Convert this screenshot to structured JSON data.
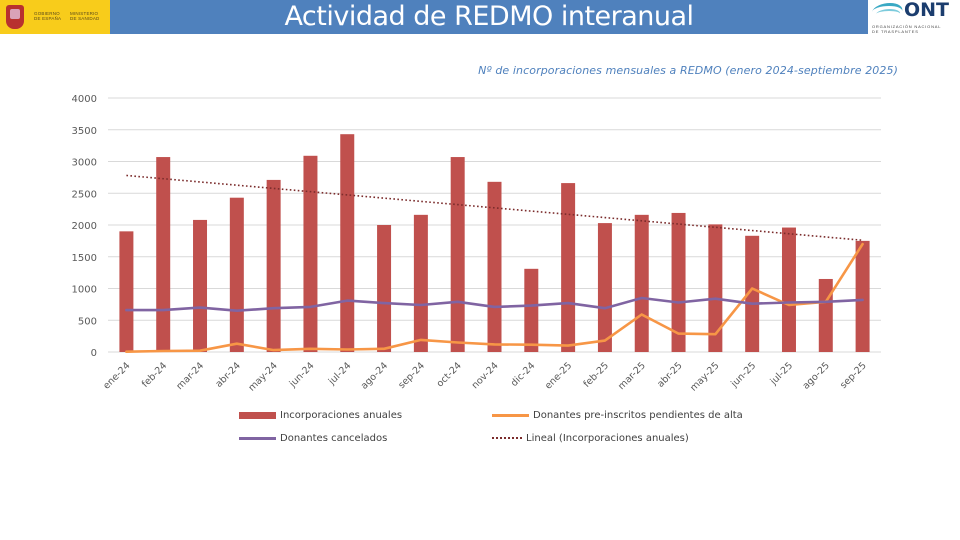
{
  "header": {
    "title": "Actividad de REDMO interanual",
    "left_logo": {
      "line1": "GOBIERNO",
      "line2": "DE ESPAÑA",
      "line3": "MINISTERIO",
      "line4": "DE SANIDAD"
    },
    "right_logo": {
      "name": "ONT",
      "subtitle_line1": "ORGANIZACIÓN NACIONAL",
      "subtitle_line2": "DE TRASPLANTES"
    },
    "colors": {
      "title_bar": "#4f81bd",
      "gov_yellow": "#f8cc1b"
    }
  },
  "chart_data": {
    "type": "bar",
    "title": "Nº de incorporaciones mensuales a REDMO (enero 2024-septiembre 2025)",
    "xlabel": "",
    "ylabel": "",
    "ylim": [
      0,
      4000
    ],
    "yticks": [
      0,
      500,
      1000,
      1500,
      2000,
      2500,
      3000,
      3500,
      4000
    ],
    "grid": true,
    "legend_position": "bottom",
    "categories": [
      "ene-24",
      "feb-24",
      "mar-24",
      "abr-24",
      "may-24",
      "jun-24",
      "jul-24",
      "ago-24",
      "sep-24",
      "oct-24",
      "nov-24",
      "dic-24",
      "ene-25",
      "feb-25",
      "mar-25",
      "abr-25",
      "may-25",
      "jun-25",
      "jul-25",
      "ago-25",
      "sep-25"
    ],
    "series": [
      {
        "name": "Incorporaciones anuales",
        "type": "bar",
        "color": "#c0504d",
        "values": [
          1900,
          3070,
          2080,
          2430,
          2710,
          3090,
          3430,
          2000,
          2160,
          3070,
          2680,
          1310,
          2660,
          2030,
          2160,
          2190,
          2010,
          1830,
          1960,
          1150,
          1750
        ]
      },
      {
        "name": "Donantes pre-inscritos pendientes de alta",
        "type": "line",
        "color": "#f79646",
        "values": [
          5,
          15,
          20,
          130,
          30,
          50,
          40,
          50,
          190,
          150,
          120,
          115,
          100,
          180,
          590,
          290,
          280,
          1000,
          740,
          790,
          1700
        ]
      },
      {
        "name": "Donantes cancelados",
        "type": "line",
        "color": "#8064a2",
        "values": [
          660,
          660,
          700,
          650,
          690,
          710,
          810,
          770,
          740,
          790,
          710,
          730,
          770,
          690,
          850,
          780,
          840,
          760,
          780,
          790,
          820
        ]
      },
      {
        "name": "Lineal (Incorporaciones anuales)",
        "type": "trendline",
        "color": "#7b2c2c",
        "start": 2780,
        "end": 1760
      }
    ]
  }
}
